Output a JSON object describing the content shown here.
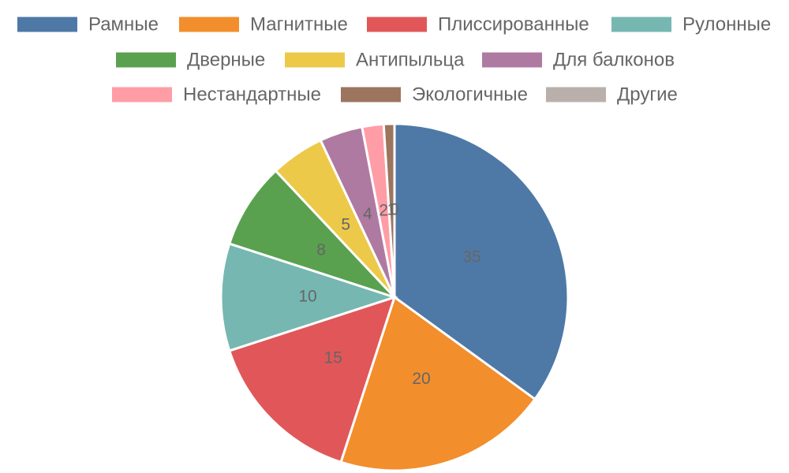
{
  "chart_data": {
    "type": "pie",
    "title": "",
    "categories": [
      "Рамные",
      "Магнитные",
      "Плиссированные",
      "Рулонные",
      "Дверные",
      "Антипыльца",
      "Для балконов",
      "Нестандартные",
      "Экологичные",
      "Другие"
    ],
    "values": [
      35,
      20,
      15,
      10,
      8,
      5,
      4,
      2,
      1,
      0
    ],
    "colors": [
      "#4e79a7",
      "#f28e2c",
      "#e15759",
      "#76b7b2",
      "#59a14f",
      "#edc949",
      "#af7aa1",
      "#ff9da7",
      "#9c755f",
      "#bab0ab"
    ],
    "data_labels": [
      "35",
      "20",
      "15",
      "10",
      "8",
      "5",
      "4",
      "2",
      "1",
      "0"
    ],
    "legend_position": "top",
    "start_angle": "12 o'clock",
    "direction": "clockwise"
  }
}
